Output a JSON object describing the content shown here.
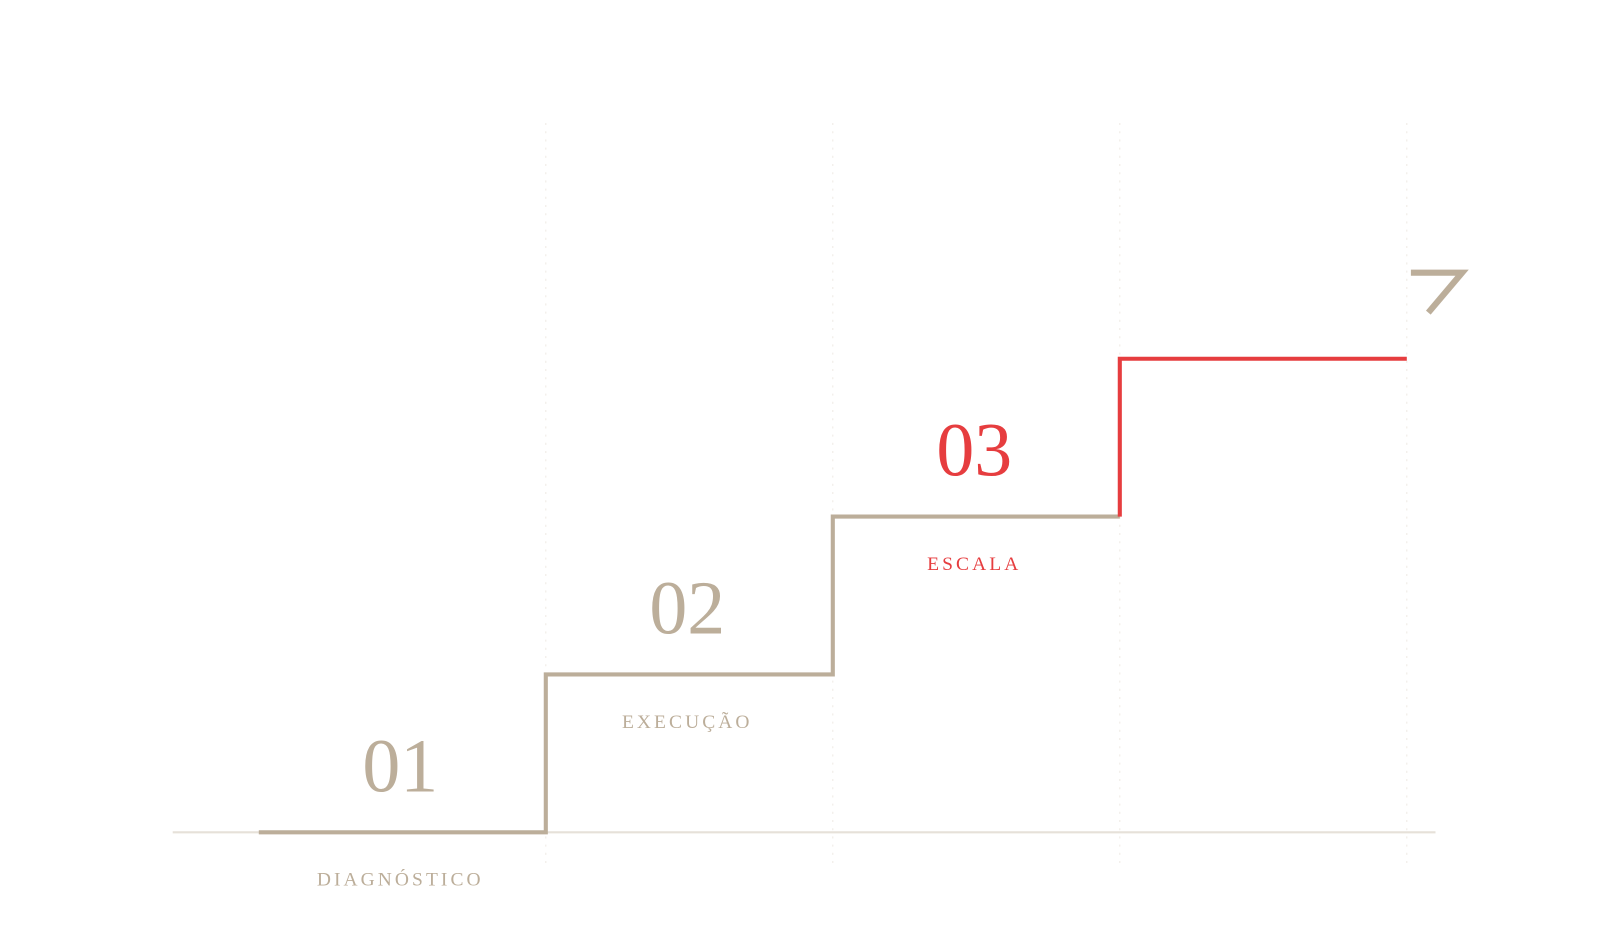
{
  "steps": [
    {
      "number": "01",
      "label": "DIAGNÓSTICO"
    },
    {
      "number": "02",
      "label": "EXECUÇÃO"
    },
    {
      "number": "03",
      "label": "ESCALA"
    }
  ]
}
